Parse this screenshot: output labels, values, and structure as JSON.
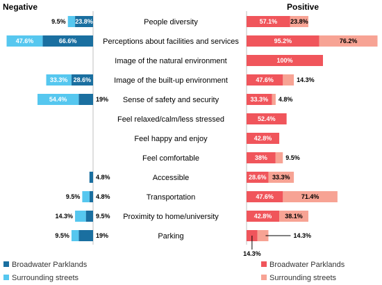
{
  "chart_data": {
    "type": "bar",
    "orientation": "horizontal",
    "layout": "diverging",
    "sides": {
      "negative_title": "Negative",
      "positive_title": "Positive"
    },
    "categories": [
      "People diversity",
      "Perceptions about facilities and services",
      "Image of the natural environment",
      "Image of the built-up environment",
      "Sense of safety and security",
      "Feel relaxed/calm/less stressed",
      "Feel happy and enjoy",
      "Feel comfortable",
      "Accessible",
      "Transportation",
      "Proximity to home/university",
      "Parking"
    ],
    "negative": {
      "series": [
        {
          "name": "Broadwater Parklands",
          "color": "#1a6fa0",
          "values": [
            23.8,
            66.6,
            null,
            28.6,
            19,
            null,
            null,
            null,
            4.8,
            4.8,
            9.5,
            19
          ]
        },
        {
          "name": "Surrounding streets",
          "color": "#56c7ef",
          "values": [
            9.5,
            47.6,
            null,
            33.3,
            54.4,
            null,
            null,
            null,
            null,
            9.5,
            14.3,
            9.5
          ]
        }
      ]
    },
    "positive": {
      "series": [
        {
          "name": "Broadwater Parklands",
          "color": "#f0555b",
          "values": [
            57.1,
            95.2,
            100,
            47.6,
            33.3,
            52.4,
            42.8,
            38,
            28.6,
            47.6,
            42.8,
            14.3
          ]
        },
        {
          "name": "Surrounding streets",
          "color": "#f7a394",
          "values": [
            23.8,
            76.2,
            null,
            14.3,
            4.8,
            null,
            null,
            9.5,
            33.3,
            71.4,
            38.1,
            14.3
          ]
        }
      ]
    },
    "legend": [
      "Broadwater Parklands",
      "Surrounding streets"
    ]
  }
}
